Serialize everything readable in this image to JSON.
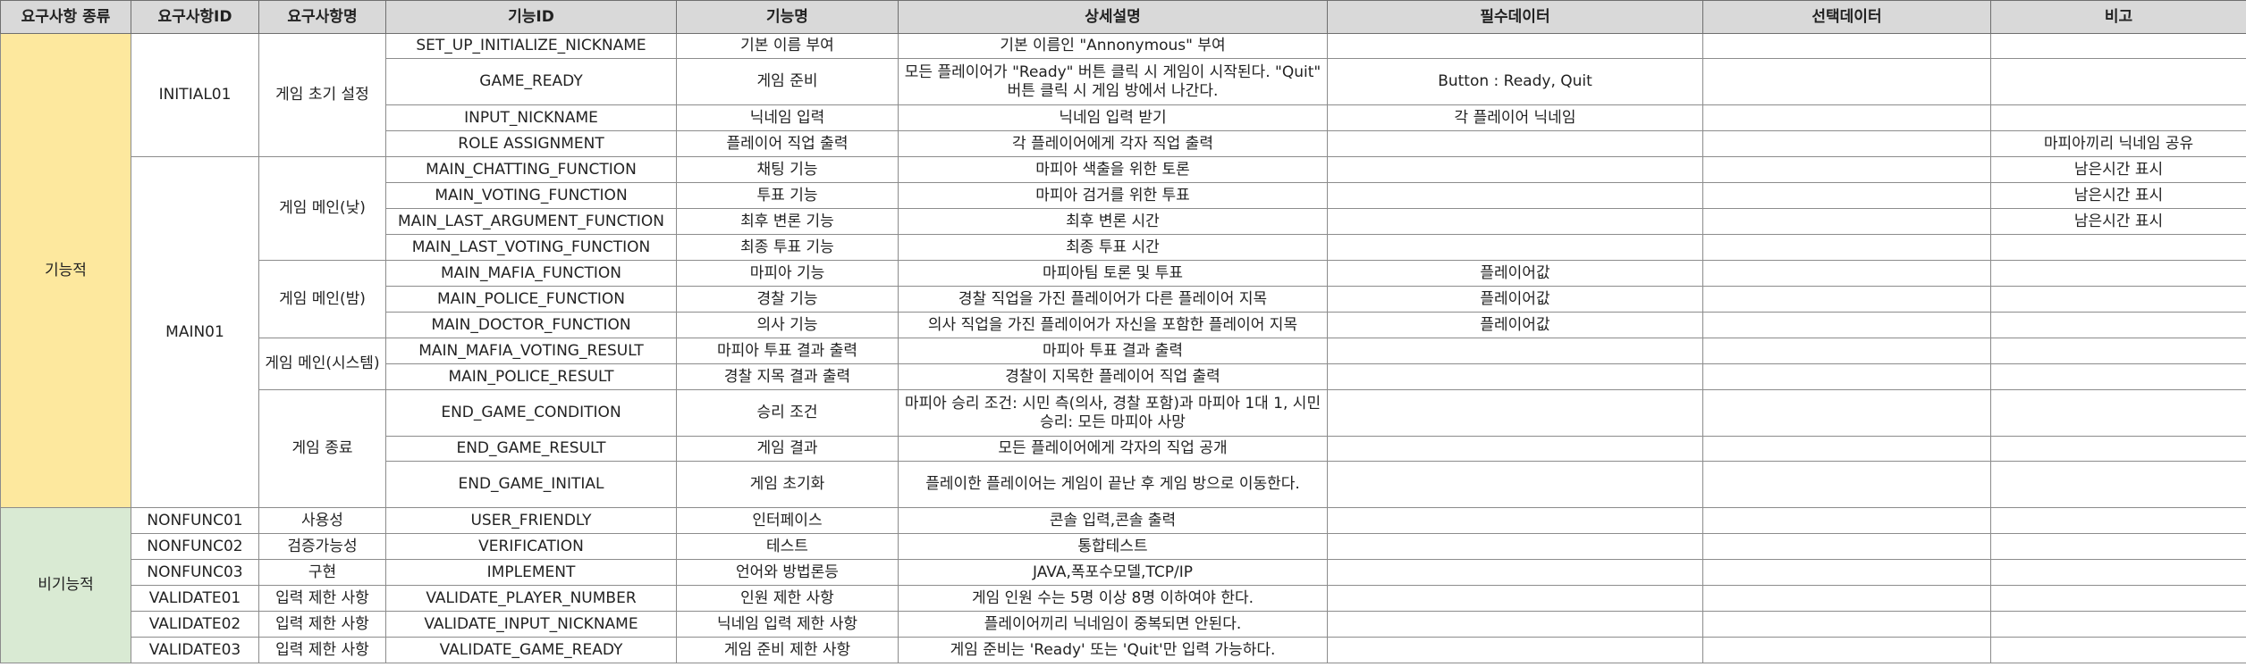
{
  "headers": [
    "요구사항 종류",
    "요구사항ID",
    "요구사항명",
    "기능ID",
    "기능명",
    "상세설명",
    "필수데이터",
    "선택데이터",
    "비고"
  ],
  "categories": {
    "functional": "기능적",
    "nonfunctional": "비기능적"
  },
  "req_ids": {
    "initial01": "INITIAL01",
    "main01": "MAIN01"
  },
  "req_names": {
    "init": "게임 초기 설정",
    "day": "게임 메인(낮)",
    "night": "게임 메인(밤)",
    "system": "게임 메인(시스템)",
    "end": "게임 종료"
  },
  "rows": [
    {
      "fid": "SET_UP_INITIALIZE_NICKNAME",
      "fname": "기본 이름 부여",
      "desc": "기본 이름인 \"Annonymous\" 부여",
      "req": "",
      "opt": "",
      "note": ""
    },
    {
      "fid": "GAME_READY",
      "fname": "게임 준비",
      "desc": "모든 플레이어가 \"Ready\" 버튼 클릭 시 게임이 시작된다.\n\"Quit\" 버튼 클릭 시 게임 방에서 나간다.",
      "req": "Button : Ready, Quit",
      "opt": "",
      "note": ""
    },
    {
      "fid": "INPUT_NICKNAME",
      "fname": "닉네임 입력",
      "desc": "닉네임 입력 받기",
      "req": "각 플레이어 닉네임",
      "opt": "",
      "note": ""
    },
    {
      "fid": "ROLE ASSIGNMENT",
      "fname": "플레이어 직업 출력",
      "desc": "각 플레이어에게 각자 직업 출력",
      "req": "",
      "opt": "",
      "note": "마피아끼리 닉네임 공유"
    },
    {
      "fid": "MAIN_CHATTING_FUNCTION",
      "fname": "채팅 기능",
      "desc": "마피아 색출을 위한 토론",
      "req": "",
      "opt": "",
      "note": "남은시간 표시"
    },
    {
      "fid": "MAIN_VOTING_FUNCTION",
      "fname": "투표 기능",
      "desc": "마피아 검거를 위한 투표",
      "req": "",
      "opt": "",
      "note": "남은시간 표시"
    },
    {
      "fid": "MAIN_LAST_ARGUMENT_FUNCTION",
      "fname": "최후 변론 기능",
      "desc": "최후 변론 시간",
      "req": "",
      "opt": "",
      "note": "남은시간 표시"
    },
    {
      "fid": "MAIN_LAST_VOTING_FUNCTION",
      "fname": "최종 투표 기능",
      "desc": "최종 투표 시간",
      "req": "",
      "opt": "",
      "note": ""
    },
    {
      "fid": "MAIN_MAFIA_FUNCTION",
      "fname": "마피아 기능",
      "desc": "마피아팀 토론 및 투표",
      "req": "플레이어값",
      "opt": "",
      "note": ""
    },
    {
      "fid": "MAIN_POLICE_FUNCTION",
      "fname": "경찰 기능",
      "desc": "경찰 직업을 가진 플레이어가 다른 플레이어 지목",
      "req": "플레이어값",
      "opt": "",
      "note": ""
    },
    {
      "fid": "MAIN_DOCTOR_FUNCTION",
      "fname": "의사 기능",
      "desc": "의사 직업을 가진 플레이어가 자신을 포함한 플레이어 지목",
      "req": "플레이어값",
      "opt": "",
      "note": ""
    },
    {
      "fid": "MAIN_MAFIA_VOTING_RESULT",
      "fname": "마피아 투표 결과 출력",
      "desc": "마피아 투표 결과 출력",
      "req": "",
      "opt": "",
      "note": ""
    },
    {
      "fid": "MAIN_POLICE_RESULT",
      "fname": "경찰 지목 결과 출력",
      "desc": "경찰이 지목한 플레이어 직업 출력",
      "req": "",
      "opt": "",
      "note": ""
    },
    {
      "fid": "END_GAME_CONDITION",
      "fname": "승리 조건",
      "desc": "마피아 승리 조건: 시민 측(의사, 경찰 포함)과 마피아\n1대 1, 시민 승리: 모든 마피아 사망",
      "req": "",
      "opt": "",
      "note": ""
    },
    {
      "fid": "END_GAME_RESULT",
      "fname": "게임 결과",
      "desc": "모든 플레이어에게 각자의 직업 공개",
      "req": "",
      "opt": "",
      "note": ""
    },
    {
      "fid": "END_GAME_INITIAL",
      "fname": "게임 초기화",
      "desc": "플레이한 플레이어는 게임이 끝난 후\n게임 방으로 이동한다.",
      "req": "",
      "opt": "",
      "note": ""
    },
    {
      "rid": "NONFUNC01",
      "rname": "사용성",
      "fid": "USER_FRIENDLY",
      "fname": "인터페이스",
      "desc": "콘솔 입력,콘솔 출력",
      "req": "",
      "opt": "",
      "note": ""
    },
    {
      "rid": "NONFUNC02",
      "rname": "검증가능성",
      "fid": "VERIFICATION",
      "fname": "테스트",
      "desc": "통합테스트",
      "req": "",
      "opt": "",
      "note": ""
    },
    {
      "rid": "NONFUNC03",
      "rname": "구현",
      "fid": "IMPLEMENT",
      "fname": "언어와 방법론등",
      "desc": "JAVA,폭포수모델,TCP/IP",
      "req": "",
      "opt": "",
      "note": ""
    },
    {
      "rid": "VALIDATE01",
      "rname": "입력 제한 사항",
      "fid": "VALIDATE_PLAYER_NUMBER",
      "fname": "인원 제한 사항",
      "desc": "게임 인원 수는 5명 이상 8명 이하여야 한다.",
      "req": "",
      "opt": "",
      "note": ""
    },
    {
      "rid": "VALIDATE02",
      "rname": "입력 제한 사항",
      "fid": "VALIDATE_INPUT_NICKNAME",
      "fname": "닉네임 입력 제한 사항",
      "desc": "플레이어끼리 닉네임이 중복되면 안된다.",
      "req": "",
      "opt": "",
      "note": ""
    },
    {
      "rid": "VALIDATE03",
      "rname": "입력 제한 사항",
      "fid": "VALIDATE_GAME_READY",
      "fname": "게임 준비 제한 사항",
      "desc": "게임 준비는 'Ready' 또는 'Quit'만 입력 가능하다.",
      "req": "",
      "opt": "",
      "note": ""
    }
  ]
}
